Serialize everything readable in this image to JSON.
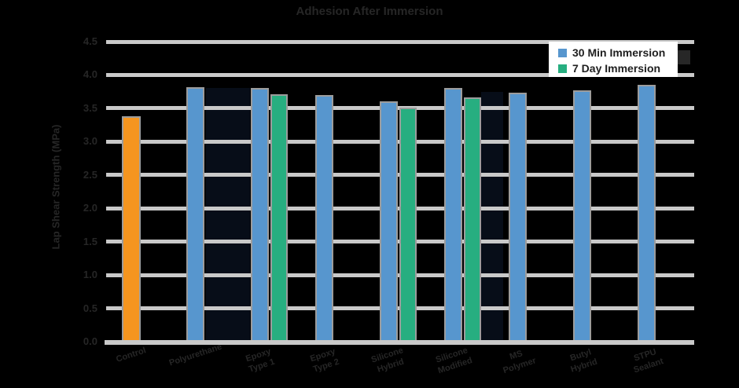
{
  "chart_data": {
    "type": "bar",
    "title": "Adhesion After Immersion",
    "ylabel": "Lap Shear Strength (MPa)",
    "ylim": [
      0,
      4.5
    ],
    "ytick_step": 0.5,
    "yticks": [
      "4.5",
      "4.0",
      "3.5",
      "3.0",
      "2.5",
      "2.0",
      "1.5",
      "1.0",
      "0.5",
      "0.0"
    ],
    "grid": "horizontal",
    "legend": {
      "position": "top-right",
      "entries": [
        {
          "label": "30 Min Immersion",
          "color": "#5796CE"
        },
        {
          "label": "7 Day Immersion",
          "color": "#27AE80"
        }
      ]
    },
    "groups": [
      {
        "category_lines": [
          "Control"
        ],
        "bars": [
          {
            "series": "30 Min Immersion",
            "value": 3.38,
            "color": "#F5951F"
          }
        ]
      },
      {
        "category_lines": [
          "Polyurethane"
        ],
        "bars": [
          {
            "series": "30 Min Immersion",
            "value": 3.82,
            "color": "#5796CE"
          }
        ]
      },
      {
        "category_lines": [
          "Epoxy",
          "Type 1"
        ],
        "bars": [
          {
            "series": "30 Min Immersion",
            "value": 3.8,
            "color": "#5796CE"
          },
          {
            "series": "7 Day Immersion",
            "value": 3.71,
            "color": "#27AE80"
          }
        ]
      },
      {
        "category_lines": [
          "Epoxy",
          "Type 2"
        ],
        "bars": [
          {
            "series": "30 Min Immersion",
            "value": 3.7,
            "color": "#5796CE"
          }
        ]
      },
      {
        "category_lines": [
          "Silicone",
          "Hybrid"
        ],
        "bars": [
          {
            "series": "30 Min Immersion",
            "value": 3.6,
            "color": "#5796CE"
          },
          {
            "series": "7 Day Immersion",
            "value": 3.51,
            "color": "#27AE80"
          }
        ]
      },
      {
        "category_lines": [
          "Silicone",
          "Modified"
        ],
        "bars": [
          {
            "series": "30 Min Immersion",
            "value": 3.8,
            "color": "#5796CE"
          },
          {
            "series": "7 Day Immersion",
            "value": 3.66,
            "color": "#27AE80"
          }
        ]
      },
      {
        "category_lines": [
          "MS",
          "Polymer"
        ],
        "bars": [
          {
            "series": "30 Min Immersion",
            "value": 3.73,
            "color": "#5796CE"
          }
        ]
      },
      {
        "category_lines": [
          "Butyl",
          "Hybrid"
        ],
        "bars": [
          {
            "series": "30 Min Immersion",
            "value": 3.77,
            "color": "#5796CE"
          }
        ]
      },
      {
        "category_lines": [
          "STPU",
          "Sealant"
        ],
        "bars": [
          {
            "series": "30 Min Immersion",
            "value": 3.85,
            "color": "#5796CE"
          }
        ]
      }
    ]
  },
  "colors": {
    "background": "#000000",
    "gridline": "#C9C9C9",
    "bar_outline": "#9C9C9C",
    "bar_blue": "#5796CE",
    "bar_green": "#27AE80",
    "bar_orange": "#F5951F",
    "axis_text": "#262626",
    "legend_bg": "#FFFFFF",
    "legend_text": "#1F1F1F"
  }
}
